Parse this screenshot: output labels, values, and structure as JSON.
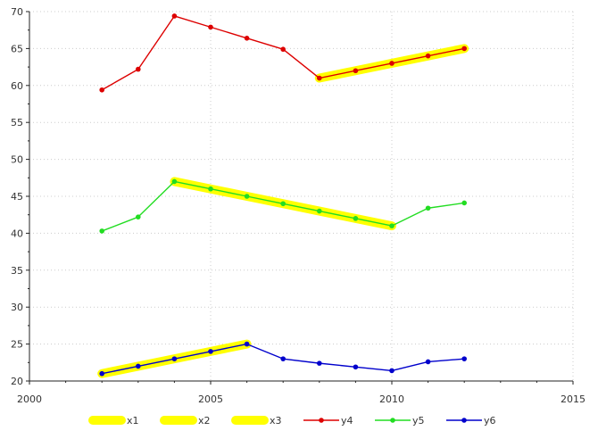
{
  "chart_data": {
    "type": "line",
    "title": "",
    "xlabel": "",
    "ylabel": "",
    "xlim": [
      2000,
      2015
    ],
    "ylim": [
      20,
      70
    ],
    "x_ticks": [
      2000,
      2005,
      2010,
      2015
    ],
    "y_ticks": [
      20,
      25,
      30,
      35,
      40,
      45,
      50,
      55,
      60,
      65,
      70
    ],
    "grid": true,
    "legend_position": "bottom",
    "series": [
      {
        "name": "x1",
        "color": "#ffff00",
        "style": "highlight",
        "points": [
          [
            2002,
            21.0
          ],
          [
            2003,
            22.0
          ],
          [
            2004,
            23.0
          ],
          [
            2005,
            24.0
          ],
          [
            2006,
            25.0
          ]
        ]
      },
      {
        "name": "x2",
        "color": "#ffff00",
        "style": "highlight",
        "points": [
          [
            2004,
            47.0
          ],
          [
            2005,
            46.0
          ],
          [
            2006,
            45.0
          ],
          [
            2007,
            44.0
          ],
          [
            2008,
            43.0
          ],
          [
            2009,
            42.0
          ],
          [
            2010,
            41.0
          ]
        ]
      },
      {
        "name": "x3",
        "color": "#ffff00",
        "style": "highlight",
        "points": [
          [
            2008,
            61.0
          ],
          [
            2009,
            62.0
          ],
          [
            2010,
            63.0
          ],
          [
            2011,
            64.0
          ],
          [
            2012,
            65.0
          ]
        ]
      },
      {
        "name": "y4",
        "color": "#dd0000",
        "style": "line",
        "points": [
          [
            2002,
            59.4
          ],
          [
            2003,
            62.2
          ],
          [
            2004,
            69.4
          ],
          [
            2005,
            67.9
          ],
          [
            2006,
            66.4
          ],
          [
            2007,
            64.9
          ],
          [
            2008,
            61.0
          ],
          [
            2009,
            62.0
          ],
          [
            2010,
            63.0
          ],
          [
            2011,
            64.0
          ],
          [
            2012,
            65.0
          ]
        ]
      },
      {
        "name": "y5",
        "color": "#22dd22",
        "style": "line",
        "points": [
          [
            2002,
            40.3
          ],
          [
            2003,
            42.2
          ],
          [
            2004,
            47.0
          ],
          [
            2005,
            46.0
          ],
          [
            2006,
            45.0
          ],
          [
            2007,
            44.0
          ],
          [
            2008,
            43.0
          ],
          [
            2009,
            42.0
          ],
          [
            2010,
            41.0
          ],
          [
            2011,
            43.4
          ],
          [
            2012,
            44.1
          ]
        ]
      },
      {
        "name": "y6",
        "color": "#0000cc",
        "style": "line",
        "points": [
          [
            2002,
            21.0
          ],
          [
            2003,
            22.0
          ],
          [
            2004,
            23.0
          ],
          [
            2005,
            24.0
          ],
          [
            2006,
            25.0
          ],
          [
            2007,
            23.0
          ],
          [
            2008,
            22.4
          ],
          [
            2009,
            21.9
          ],
          [
            2010,
            21.4
          ],
          [
            2011,
            22.6
          ],
          [
            2012,
            23.0
          ]
        ]
      }
    ]
  }
}
